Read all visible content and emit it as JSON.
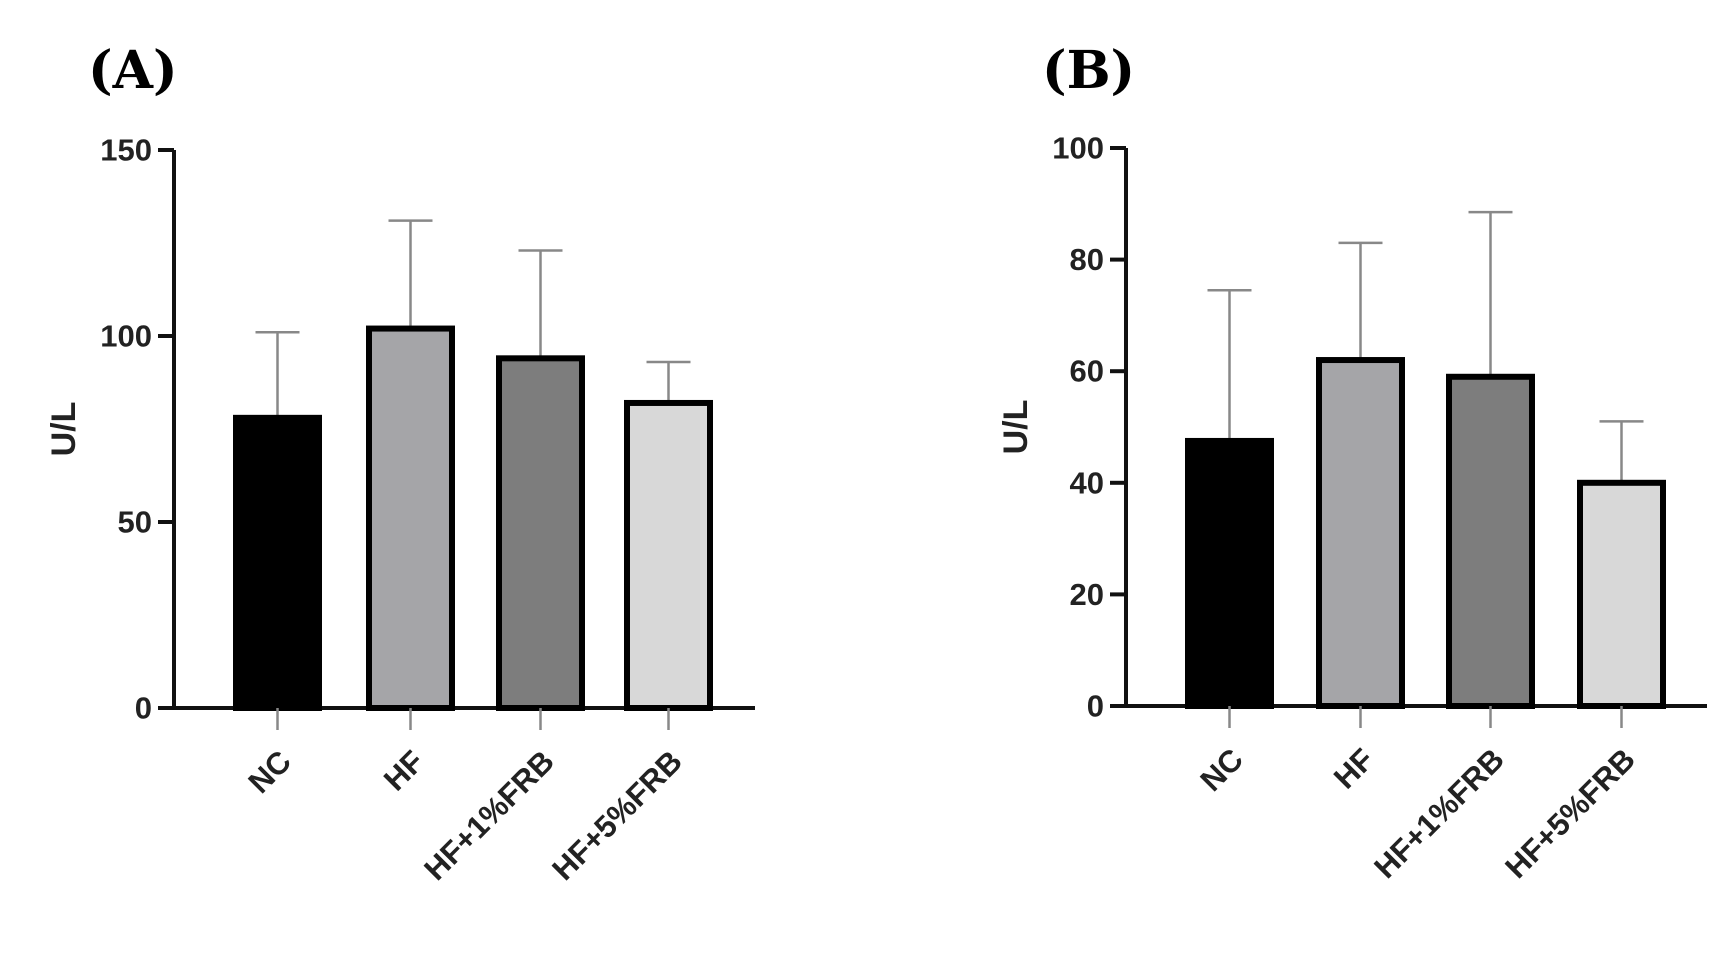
{
  "chart_data": [
    {
      "panel": "(A)",
      "type": "bar",
      "categories": [
        "NC",
        "HF",
        "HF+1%FRB",
        "HF+5%FRB"
      ],
      "values": [
        78,
        102,
        94,
        82
      ],
      "errors_upper": [
        101,
        131,
        123,
        93
      ],
      "colors": [
        "#000000",
        "#a5a5a8",
        "#7d7d7d",
        "#d8d8d8"
      ],
      "ylabel": "U/L",
      "xlabel": "",
      "ylim": [
        0,
        150
      ],
      "yticks": [
        0,
        50,
        100,
        150
      ],
      "ytick_labels": [
        "0",
        "50",
        "100",
        "150"
      ]
    },
    {
      "panel": "(B)",
      "type": "bar",
      "categories": [
        "NC",
        "HF",
        "HF+1%FRB",
        "HF+5%FRB"
      ],
      "values": [
        47.5,
        62,
        59,
        40
      ],
      "errors_upper": [
        74.5,
        83,
        88.5,
        51
      ],
      "colors": [
        "#000000",
        "#a5a5a8",
        "#7d7d7d",
        "#d8d8d8"
      ],
      "ylabel": "U/L",
      "xlabel": "",
      "ylim": [
        0,
        100
      ],
      "yticks": [
        0,
        20,
        40,
        60,
        80,
        100
      ],
      "ytick_labels": [
        "0",
        "20",
        "40",
        "60",
        "80",
        "100"
      ]
    }
  ]
}
